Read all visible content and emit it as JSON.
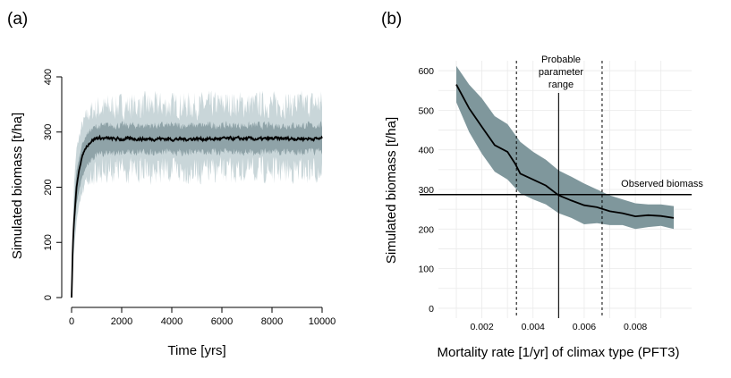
{
  "chart_data": [
    {
      "panel": "(a)",
      "type": "line",
      "title": "",
      "xlabel": "Time [yrs]",
      "ylabel": "Simulated biomass [t/ha]",
      "xlim": [
        0,
        10000
      ],
      "ylim": [
        0,
        400
      ],
      "xticks": [
        0,
        2000,
        4000,
        6000,
        8000,
        10000
      ],
      "xtick_labels": [
        "0",
        "2000",
        "4000",
        "6000",
        "8000",
        "10000"
      ],
      "yticks": [
        0,
        100,
        200,
        300,
        400
      ],
      "ytick_labels": [
        "0",
        "100",
        "200",
        "300",
        "400"
      ],
      "grid": false,
      "series": [
        {
          "name": "mean",
          "x": [
            0,
            50,
            100,
            200,
            300,
            400,
            500,
            600,
            700,
            800,
            900,
            1000,
            1200,
            1500,
            2000,
            2500,
            3000,
            3500,
            4000,
            4500,
            5000,
            5500,
            6000,
            6500,
            7000,
            7500,
            8000,
            8500,
            9000,
            9500,
            10000
          ],
          "values": [
            0,
            95,
            140,
            200,
            232,
            252,
            265,
            274,
            280,
            284,
            287,
            289,
            289,
            288,
            287,
            288,
            287,
            288,
            287,
            287,
            288,
            287,
            288,
            288,
            288,
            287,
            288,
            288,
            288,
            288,
            288
          ]
        },
        {
          "name": "inner band lower",
          "x": [
            0,
            100,
            200,
            400,
            600,
            800,
            1000,
            1500,
            2000,
            3000,
            4000,
            5000,
            6000,
            7000,
            8000,
            9000,
            10000
          ],
          "values": [
            0,
            110,
            170,
            215,
            240,
            252,
            258,
            262,
            264,
            264,
            264,
            264,
            264,
            264,
            264,
            264,
            264
          ]
        },
        {
          "name": "inner band upper",
          "x": [
            0,
            100,
            200,
            400,
            600,
            800,
            1000,
            1500,
            2000,
            3000,
            4000,
            5000,
            6000,
            7000,
            8000,
            9000,
            10000
          ],
          "values": [
            0,
            175,
            230,
            275,
            296,
            305,
            310,
            312,
            312,
            312,
            312,
            312,
            312,
            312,
            312,
            312,
            312
          ]
        },
        {
          "name": "outer band lower",
          "x": [
            0,
            100,
            200,
            400,
            600,
            800,
            1000,
            1500,
            2000,
            3000,
            4000,
            5000,
            6000,
            7000,
            8000,
            9000,
            10000
          ],
          "values": [
            0,
            85,
            140,
            185,
            210,
            222,
            228,
            232,
            232,
            230,
            230,
            228,
            230,
            230,
            230,
            230,
            230
          ]
        },
        {
          "name": "outer band upper",
          "x": [
            0,
            100,
            200,
            400,
            600,
            800,
            1000,
            1500,
            2000,
            3000,
            4000,
            5000,
            6000,
            7000,
            8000,
            9000,
            10000
          ],
          "values": [
            0,
            210,
            270,
            310,
            330,
            338,
            342,
            345,
            347,
            348,
            348,
            348,
            350,
            350,
            350,
            350,
            352
          ]
        }
      ]
    },
    {
      "panel": "(b)",
      "type": "line",
      "title": "",
      "xlabel": "Mortality rate [1/yr] of climax type (PFT3)",
      "ylabel": "Simulated biomass [t/ha]",
      "xlim": [
        0.0003,
        0.0102
      ],
      "ylim": [
        -25,
        625
      ],
      "xticks": [
        0.002,
        0.004,
        0.006,
        0.008
      ],
      "xtick_labels": [
        "0.002",
        "0.004",
        "0.006",
        "0.008"
      ],
      "yticks": [
        0,
        100,
        200,
        300,
        400,
        500,
        600
      ],
      "ytick_labels": [
        "0",
        "100",
        "200",
        "300",
        "400",
        "500",
        "600"
      ],
      "grid": true,
      "series": [
        {
          "name": "mean",
          "x": [
            0.001,
            0.0015,
            0.002,
            0.0025,
            0.003,
            0.0033,
            0.0035,
            0.004,
            0.0045,
            0.005,
            0.0055,
            0.006,
            0.0065,
            0.007,
            0.0075,
            0.008,
            0.0085,
            0.009,
            0.0095
          ],
          "values": [
            565,
            505,
            458,
            412,
            395,
            365,
            340,
            325,
            310,
            285,
            272,
            260,
            255,
            245,
            240,
            232,
            235,
            233,
            228
          ]
        },
        {
          "name": "band upper",
          "x": [
            0.001,
            0.0015,
            0.002,
            0.0025,
            0.003,
            0.0035,
            0.004,
            0.0045,
            0.005,
            0.0055,
            0.006,
            0.0065,
            0.007,
            0.0075,
            0.008,
            0.0085,
            0.009,
            0.0095
          ],
          "values": [
            612,
            565,
            530,
            485,
            465,
            420,
            395,
            375,
            348,
            332,
            315,
            300,
            285,
            275,
            265,
            262,
            262,
            258
          ]
        },
        {
          "name": "band lower",
          "x": [
            0.001,
            0.0015,
            0.002,
            0.0025,
            0.003,
            0.0035,
            0.004,
            0.0045,
            0.005,
            0.0055,
            0.006,
            0.0065,
            0.007,
            0.0075,
            0.008,
            0.0085,
            0.009,
            0.0095
          ],
          "values": [
            520,
            445,
            390,
            345,
            325,
            290,
            275,
            262,
            240,
            228,
            212,
            215,
            210,
            210,
            200,
            205,
            208,
            200
          ]
        }
      ],
      "reference_lines": {
        "observed_biomass": 287,
        "probable_value": 0.005,
        "range_lower": 0.00335,
        "range_upper": 0.0067
      },
      "annotations": {
        "observed_label": "Observed biomass",
        "range_label_lines": [
          "Probable",
          "parameter",
          "range"
        ]
      }
    }
  ],
  "colors": {
    "outer_band": "#c9d6d9",
    "inner_band": "#8fa3a8",
    "band_b": "#7f979c",
    "line": "#000000",
    "grid": "#eaeaea"
  }
}
